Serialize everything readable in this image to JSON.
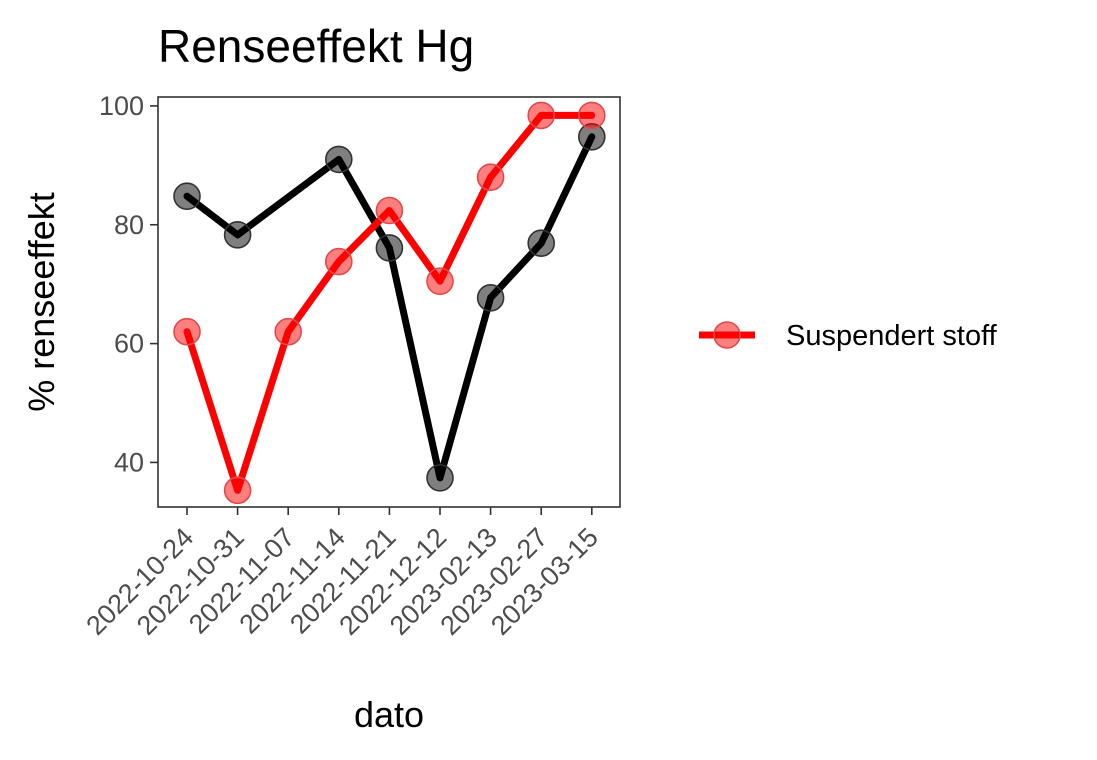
{
  "chart_data": {
    "type": "line",
    "title": "Renseeffekt Hg",
    "xlabel": "dato",
    "ylabel": "% renseeffekt",
    "categories": [
      "2022-10-24",
      "2022-10-31",
      "2022-11-07",
      "2022-11-14",
      "2022-11-21",
      "2022-12-12",
      "2023-02-13",
      "2023-02-27",
      "2023-03-15"
    ],
    "yticks": [
      40,
      60,
      80,
      100
    ],
    "ylim": [
      32.5,
      101.5
    ],
    "grid": false,
    "legend_position": "right",
    "series": [
      {
        "color": "#000000",
        "values": [
          84.8,
          78.3,
          null,
          91.0,
          76.1,
          37.4,
          67.7,
          76.9,
          94.8
        ]
      },
      {
        "name": "Suspendert stoff",
        "color": "#ff0000",
        "values": [
          62.0,
          35.3,
          62.0,
          73.8,
          82.4,
          70.5,
          88.0,
          98.4,
          98.4
        ]
      }
    ],
    "legend": [
      {
        "label": "Suspendert stoff",
        "color": "#ff0000"
      }
    ]
  }
}
